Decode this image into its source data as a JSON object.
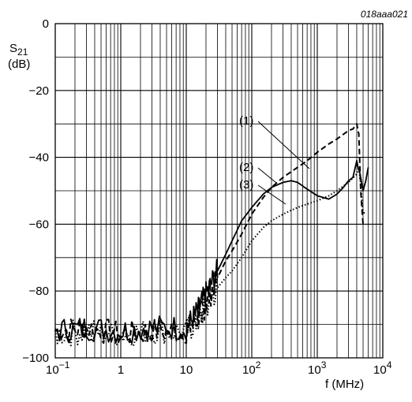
{
  "chart_data": {
    "type": "line",
    "figure_id": "018aaa021",
    "ylabel_main": "S",
    "ylabel_sub": "21",
    "ylabel_unit": "(dB)",
    "xlabel": "f (MHz)",
    "x_scale": "log",
    "xlim": [
      0.1,
      10000
    ],
    "ylim": [
      -100,
      0
    ],
    "grid": true,
    "y_ticks": [
      "0",
      "−20",
      "−40",
      "−60",
      "−80",
      "−100"
    ],
    "y_tick_values": [
      0,
      -20,
      -40,
      -60,
      -80,
      -100
    ],
    "x_ticks": [
      {
        "value": 0.1,
        "base": "10",
        "exp": "−1"
      },
      {
        "value": 1,
        "base": "1",
        "exp": ""
      },
      {
        "value": 10,
        "base": "10",
        "exp": ""
      },
      {
        "value": 100,
        "base": "10",
        "exp": "2"
      },
      {
        "value": 1000,
        "base": "10",
        "exp": "3"
      },
      {
        "value": 10000,
        "base": "10",
        "exp": "4"
      }
    ],
    "series": [
      {
        "name": "(1)",
        "style": "dashed",
        "x": [
          0.1,
          0.3,
          1,
          3,
          10,
          15,
          20,
          30,
          40,
          50,
          70,
          100,
          150,
          200,
          300,
          500,
          700,
          1000,
          1500,
          2000,
          3000,
          3500,
          4000,
          4300,
          4600,
          5000
        ],
        "y": [
          -92,
          -91,
          -93,
          -92,
          -92,
          -88,
          -84,
          -76,
          -71,
          -68,
          -63,
          -57,
          -52,
          -49,
          -46,
          -43,
          -41,
          -38.5,
          -36,
          -34.5,
          -32,
          -31.5,
          -30,
          -33,
          -50,
          -60
        ]
      },
      {
        "name": "(2)",
        "style": "solid",
        "x": [
          0.1,
          0.3,
          1,
          3,
          10,
          15,
          20,
          30,
          40,
          50,
          70,
          100,
          150,
          200,
          300,
          400,
          500,
          700,
          1000,
          1500,
          2000,
          2500,
          3000,
          3500,
          4000,
          4200,
          4500,
          5000,
          5500,
          6000
        ],
        "y": [
          -92,
          -91,
          -92,
          -91,
          -91,
          -86,
          -81,
          -74,
          -69,
          -65,
          -59,
          -55,
          -51,
          -49,
          -47.5,
          -47,
          -47.5,
          -49.5,
          -51.5,
          -52.5,
          -51,
          -49,
          -47,
          -46,
          -41,
          -43,
          -45,
          -50,
          -47,
          -43
        ]
      },
      {
        "name": "(3)",
        "style": "dotted",
        "x": [
          0.1,
          0.3,
          1,
          3,
          10,
          15,
          20,
          30,
          40,
          50,
          70,
          100,
          150,
          200,
          300,
          500,
          700,
          1000,
          1500,
          2000,
          3000,
          4000,
          4300,
          4600,
          5000,
          5500
        ],
        "y": [
          -93,
          -92,
          -93,
          -92,
          -92,
          -89,
          -85,
          -79,
          -76,
          -74,
          -70,
          -65,
          -61,
          -59,
          -57,
          -55,
          -54,
          -53,
          -51.5,
          -50,
          -47.5,
          -45,
          -43,
          -48,
          -57,
          -56
        ]
      }
    ],
    "annotations": [
      "(1)",
      "(2)",
      "(3)"
    ]
  }
}
